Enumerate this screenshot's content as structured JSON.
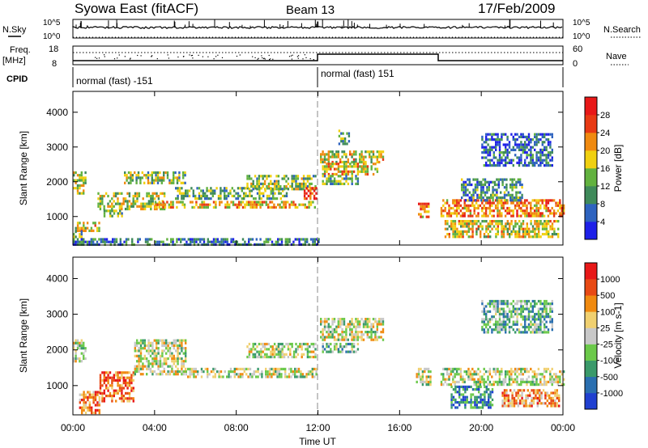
{
  "header": {
    "title": "Syowa East (fitACF)",
    "beam": "Beam 13",
    "date": "17/Feb/2009"
  },
  "nsky_panel": {
    "left_label": "N.Sky",
    "right_label": "N.Search",
    "left_ticks": [
      "10^5",
      "10^0"
    ],
    "right_ticks": [
      "10^5",
      "10^0"
    ]
  },
  "freq_panel": {
    "left_label": "Freq.",
    "left_unit": "[MHz]",
    "right_label": "Nave",
    "left_ticks": [
      "18",
      "8"
    ],
    "right_ticks": [
      "60",
      "0"
    ]
  },
  "cpid": {
    "label": "CPID",
    "segments": [
      {
        "start_hour": 0,
        "end_hour": 12,
        "text": "normal (fast) -151"
      },
      {
        "start_hour": 12,
        "end_hour": 24,
        "text": "normal (fast) 151"
      }
    ]
  },
  "x_axis": {
    "label": "Time UT",
    "range_hours": [
      0,
      24
    ],
    "ticks": [
      {
        "hour": 0,
        "label": "00:00"
      },
      {
        "hour": 4,
        "label": "04:00"
      },
      {
        "hour": 8,
        "label": "08:00"
      },
      {
        "hour": 12,
        "label": "12:00"
      },
      {
        "hour": 16,
        "label": "16:00"
      },
      {
        "hour": 20,
        "label": "20:00"
      },
      {
        "hour": 24,
        "label": "00:00"
      }
    ]
  },
  "chart_data": [
    {
      "type": "heatmap",
      "name": "power",
      "ylabel": "Slant Range [km]",
      "ylim": [
        180,
        4600
      ],
      "yticks": [
        1000,
        2000,
        3000,
        4000
      ],
      "colorbar": {
        "label": "Power [dB]",
        "ticks": [
          "4",
          "8",
          "12",
          "16",
          "20",
          "24",
          "28"
        ],
        "colors": [
          "#1e20e8",
          "#2e63bf",
          "#3f8a5a",
          "#62b23f",
          "#f0d010",
          "#f08a10",
          "#e83a14",
          "#e81818"
        ]
      },
      "regions": [
        {
          "t0": 0.0,
          "t1": 0.6,
          "r0": 1700,
          "r1": 2300,
          "level": 0.5
        },
        {
          "t0": 0.1,
          "t1": 1.3,
          "r0": 600,
          "r1": 850,
          "level": 0.55
        },
        {
          "t0": 0.0,
          "t1": 0.4,
          "r0": 250,
          "r1": 600,
          "level": 0.4
        },
        {
          "t0": 1.2,
          "t1": 4.5,
          "r0": 1200,
          "r1": 1700,
          "level": 0.5
        },
        {
          "t0": 1.5,
          "t1": 2.4,
          "r0": 1000,
          "r1": 1200,
          "level": 0.4
        },
        {
          "t0": 2.5,
          "t1": 5.5,
          "r0": 2000,
          "r1": 2300,
          "level": 0.45
        },
        {
          "t0": 4.0,
          "t1": 11.9,
          "r0": 1250,
          "r1": 1450,
          "level": 0.6
        },
        {
          "t0": 5.0,
          "t1": 10.5,
          "r0": 1500,
          "r1": 1850,
          "level": 0.4
        },
        {
          "t0": 8.5,
          "t1": 11.9,
          "r0": 1800,
          "r1": 2200,
          "level": 0.45
        },
        {
          "t0": 11.3,
          "t1": 11.9,
          "r0": 1550,
          "r1": 1850,
          "level": 0.85
        },
        {
          "t0": 0.0,
          "t1": 12.0,
          "r0": 180,
          "r1": 380,
          "level": 0.25
        },
        {
          "t0": 12.1,
          "t1": 15.2,
          "r0": 2550,
          "r1": 2900,
          "level": 0.55
        },
        {
          "t0": 12.2,
          "t1": 14.9,
          "r0": 2250,
          "r1": 2550,
          "level": 0.6
        },
        {
          "t0": 12.2,
          "t1": 14.0,
          "r0": 1950,
          "r1": 2200,
          "level": 0.4
        },
        {
          "t0": 13.0,
          "t1": 13.5,
          "r0": 3100,
          "r1": 3500,
          "level": 0.35
        },
        {
          "t0": 16.9,
          "t1": 17.4,
          "r0": 1000,
          "r1": 1400,
          "level": 0.7
        },
        {
          "t0": 18.0,
          "t1": 24.0,
          "r0": 1000,
          "r1": 1500,
          "level": 0.7
        },
        {
          "t0": 18.2,
          "t1": 23.8,
          "r0": 400,
          "r1": 900,
          "level": 0.55
        },
        {
          "t0": 19.0,
          "t1": 22.0,
          "r0": 1500,
          "r1": 2100,
          "level": 0.3
        },
        {
          "t0": 20.0,
          "t1": 23.5,
          "r0": 2500,
          "r1": 3400,
          "level": 0.2
        }
      ]
    },
    {
      "type": "heatmap",
      "name": "velocity",
      "ylabel": "Slant Range [km]",
      "ylim": [
        180,
        4600
      ],
      "yticks": [
        1000,
        2000,
        3000,
        4000
      ],
      "colorbar": {
        "label": "Velocity [m s-1]",
        "ticks": [
          "1000",
          "500",
          "100",
          "25",
          "-25",
          "-100",
          "-500",
          "-1000"
        ],
        "colors": [
          "#2040d0",
          "#2a6fb0",
          "#3a9a6a",
          "#6bc94a",
          "#c8c8c8",
          "#f0d070",
          "#f08a10",
          "#e84a14",
          "#e81818"
        ]
      },
      "regions": [
        {
          "t0": 0.0,
          "t1": 0.6,
          "r0": 1700,
          "r1": 2300,
          "level": 0.5
        },
        {
          "t0": 0.3,
          "t1": 1.3,
          "r0": 250,
          "r1": 850,
          "level": 0.75
        },
        {
          "t0": 1.3,
          "t1": 3.0,
          "r0": 600,
          "r1": 1400,
          "level": 0.8
        },
        {
          "t0": 3.0,
          "t1": 5.5,
          "r0": 1300,
          "r1": 2300,
          "level": 0.5
        },
        {
          "t0": 5.5,
          "t1": 11.9,
          "r0": 1250,
          "r1": 1500,
          "level": 0.5
        },
        {
          "t0": 8.5,
          "t1": 11.9,
          "r0": 1800,
          "r1": 2200,
          "level": 0.5
        },
        {
          "t0": 12.1,
          "t1": 15.2,
          "r0": 2250,
          "r1": 2900,
          "level": 0.5
        },
        {
          "t0": 12.2,
          "t1": 14.0,
          "r0": 1950,
          "r1": 2200,
          "level": 0.35
        },
        {
          "t0": 16.8,
          "t1": 17.5,
          "r0": 1000,
          "r1": 1500,
          "level": 0.5
        },
        {
          "t0": 18.0,
          "t1": 24.0,
          "r0": 1000,
          "r1": 1500,
          "level": 0.5
        },
        {
          "t0": 18.5,
          "t1": 20.5,
          "r0": 400,
          "r1": 1000,
          "level": 0.2
        },
        {
          "t0": 21.0,
          "t1": 23.8,
          "r0": 400,
          "r1": 900,
          "level": 0.7
        },
        {
          "t0": 20.0,
          "t1": 23.5,
          "r0": 2500,
          "r1": 3400,
          "level": 0.35
        }
      ]
    }
  ]
}
